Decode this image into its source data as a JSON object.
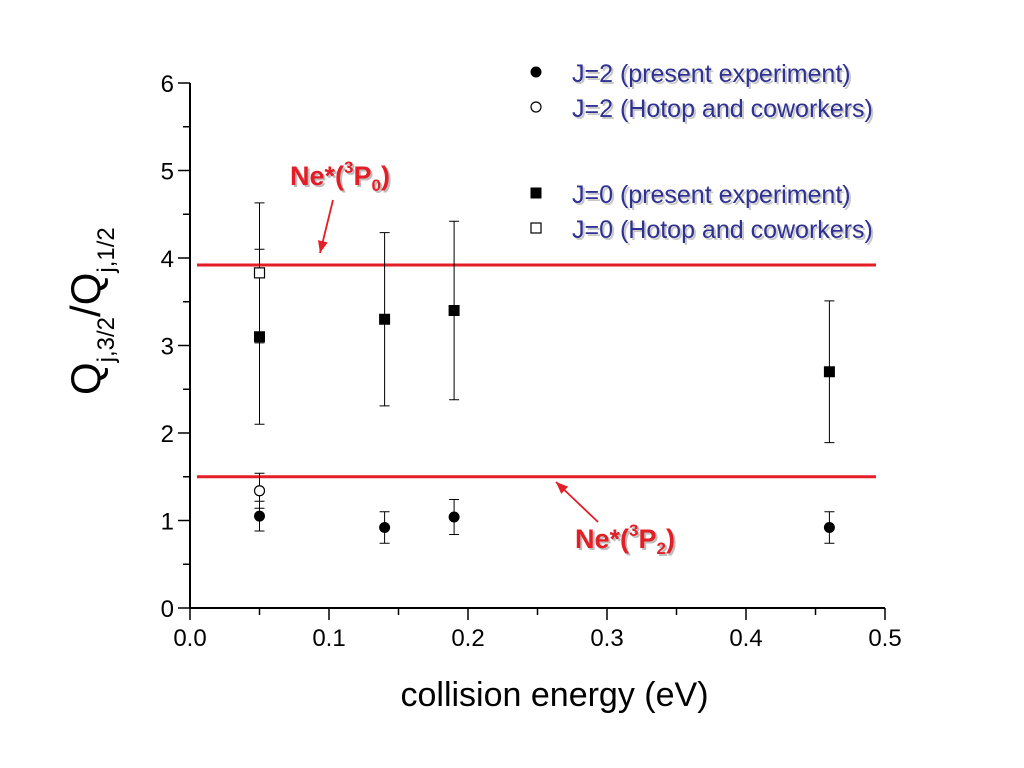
{
  "chart_data": {
    "type": "scatter",
    "xlabel": "collision energy (eV)",
    "ylabel": {
      "base": "Q",
      "sub1": "j,3/2",
      "sep": "/Q",
      "sub2": "j,1/2"
    },
    "xlim": [
      0,
      0.5
    ],
    "ylim": [
      0,
      6
    ],
    "xticks": [
      "0.0",
      "0.1",
      "0.2",
      "0.3",
      "0.4",
      "0.5"
    ],
    "yticks": [
      "0",
      "1",
      "2",
      "3",
      "4",
      "5",
      "6"
    ],
    "legend_position": "top-right",
    "series": [
      {
        "name": "J=2 (present experiment)",
        "marker": "filled-circle",
        "points": [
          {
            "x": 0.05,
            "y": 1.05,
            "err": 0.17
          },
          {
            "x": 0.14,
            "y": 0.92,
            "err": 0.18
          },
          {
            "x": 0.19,
            "y": 1.04,
            "err": 0.2
          },
          {
            "x": 0.46,
            "y": 0.92,
            "err": 0.18
          }
        ]
      },
      {
        "name": "J=2 (Hotop and coworkers)",
        "marker": "open-circle",
        "points": [
          {
            "x": 0.05,
            "y": 1.34,
            "err": 0.2
          }
        ]
      },
      {
        "name": "J=0 (present experiment)",
        "marker": "filled-square",
        "points": [
          {
            "x": 0.05,
            "y": 3.1,
            "err": 1.0
          },
          {
            "x": 0.14,
            "y": 3.3,
            "err": 0.99
          },
          {
            "x": 0.19,
            "y": 3.4,
            "err": 1.02
          },
          {
            "x": 0.46,
            "y": 2.7,
            "err": 0.81
          }
        ]
      },
      {
        "name": "J=0 (Hotop and coworkers)",
        "marker": "open-square",
        "points": [
          {
            "x": 0.05,
            "y": 3.83,
            "err": 0.8
          }
        ]
      }
    ],
    "reference_lines": [
      {
        "y": 3.92,
        "label": "Ne*(3P0)",
        "color": "#e41e26"
      },
      {
        "y": 1.5,
        "label": "Ne*(3P2)",
        "color": "#e41e26"
      }
    ],
    "annotations": [
      {
        "base": "Ne*(",
        "sup": "3",
        "mid": "P",
        "sub": "0",
        "end": ")"
      },
      {
        "base": "Ne*(",
        "sup": "3",
        "mid": "P",
        "sub": "2",
        "end": ")"
      }
    ]
  }
}
